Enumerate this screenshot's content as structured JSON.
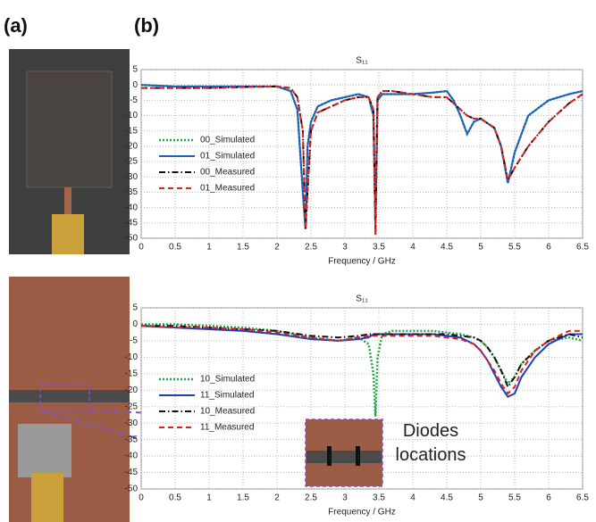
{
  "labels": [
    "(a)",
    "(b)"
  ],
  "annotation": "Diodes locations",
  "chart_data": [
    {
      "type": "line",
      "title": "S₁₁",
      "xlabel": "Frequency / GHz",
      "grid": true,
      "xlim": [
        0,
        6.5
      ],
      "xticks": [
        0,
        0.5,
        1,
        1.5,
        2,
        2.5,
        3,
        3.5,
        4,
        4.5,
        5,
        5.5,
        6,
        6.5
      ],
      "ylim": [
        -50,
        5
      ],
      "yticks": [
        5,
        0,
        -5,
        -10,
        -15,
        -20,
        -25,
        -30,
        -35,
        -40,
        -45,
        -50
      ],
      "x": [
        0,
        0.5,
        1,
        1.5,
        2,
        2.2,
        2.3,
        2.38,
        2.42,
        2.45,
        2.5,
        2.6,
        2.8,
        3.0,
        3.2,
        3.35,
        3.42,
        3.45,
        3.48,
        3.55,
        3.7,
        4.0,
        4.3,
        4.5,
        4.6,
        4.7,
        4.8,
        4.9,
        5.0,
        5.2,
        5.3,
        5.4,
        5.5,
        5.7,
        6.0,
        6.3,
        6.5
      ],
      "series": [
        {
          "name": "00_Simulated",
          "color": "#22a845",
          "linestyle": "dotted",
          "values": [
            0,
            -0.5,
            -0.5,
            -0.5,
            -0.5,
            -2,
            -8,
            -35,
            -47,
            -20,
            -12,
            -7,
            -5,
            -4,
            -3,
            -4,
            -10,
            -45,
            -5,
            -3,
            -3,
            -3,
            -2.5,
            -2,
            -5,
            -10,
            -16,
            -12,
            -11,
            -14,
            -20,
            -32,
            -22,
            -10,
            -5,
            -3,
            -2
          ]
        },
        {
          "name": "01_Simulated",
          "color": "#1f5fbf",
          "linestyle": "solid",
          "values": [
            0,
            -0.5,
            -0.5,
            -0.5,
            -0.5,
            -2,
            -8,
            -35,
            -47,
            -20,
            -12,
            -7,
            -5,
            -4,
            -3,
            -4,
            -10,
            -45,
            -5,
            -3,
            -3,
            -3,
            -2.5,
            -2,
            -5,
            -10,
            -16,
            -12,
            -11,
            -14,
            -20,
            -32,
            -22,
            -10,
            -5,
            -3,
            -2
          ]
        },
        {
          "name": "00_Measured",
          "color": "#111111",
          "linestyle": "dashdot",
          "values": [
            -1,
            -1,
            -1,
            -0.7,
            -0.5,
            -1,
            -4,
            -15,
            -47,
            -35,
            -15,
            -9,
            -7,
            -5,
            -4,
            -4,
            -8,
            -49,
            -4,
            -2,
            -2,
            -3,
            -4,
            -4,
            -6,
            -8,
            -10,
            -11,
            -11,
            -14,
            -20,
            -31,
            -27,
            -20,
            -12,
            -6,
            -3
          ]
        },
        {
          "name": "01_Measured",
          "color": "#e02020",
          "linestyle": "dashed",
          "values": [
            -1,
            -1,
            -1,
            -0.7,
            -0.5,
            -1,
            -4,
            -15,
            -47,
            -35,
            -15,
            -9,
            -7,
            -5,
            -4,
            -4,
            -8,
            -49,
            -4,
            -2,
            -2,
            -3,
            -4,
            -4,
            -6,
            -8,
            -10,
            -11,
            -11,
            -14,
            -20,
            -31,
            -27,
            -20,
            -12,
            -6,
            -3
          ]
        }
      ]
    },
    {
      "type": "line",
      "title": "S₁₁",
      "xlabel": "Frequency / GHz",
      "grid": true,
      "xlim": [
        0,
        6.5
      ],
      "xticks": [
        0,
        0.5,
        1,
        1.5,
        2,
        2.5,
        3,
        3.5,
        4,
        4.5,
        5,
        5.5,
        6,
        6.5
      ],
      "ylim": [
        -50,
        5
      ],
      "yticks": [
        5,
        0,
        -5,
        -10,
        -15,
        -20,
        -25,
        -30,
        -35,
        -40,
        -45,
        -50
      ],
      "x": [
        0,
        0.5,
        1,
        1.5,
        2,
        2.5,
        2.9,
        3.2,
        3.35,
        3.42,
        3.45,
        3.48,
        3.55,
        3.7,
        4.0,
        4.3,
        4.5,
        4.7,
        4.9,
        5.0,
        5.1,
        5.2,
        5.3,
        5.4,
        5.5,
        5.6,
        5.8,
        6.0,
        6.3,
        6.5
      ],
      "series": [
        {
          "name": "10_Simulated",
          "color": "#22a845",
          "linestyle": "dotted",
          "values": [
            0,
            0,
            -0.5,
            -1,
            -2,
            -4,
            -5,
            -4,
            -6,
            -15,
            -28,
            -10,
            -3,
            -2,
            -2,
            -2,
            -2.5,
            -3,
            -4,
            -5,
            -7,
            -10,
            -14,
            -18,
            -16,
            -12,
            -8,
            -5,
            -4,
            -5
          ]
        },
        {
          "name": "11_Simulated",
          "color": "#1f3fbf",
          "linestyle": "solid",
          "values": [
            -0.5,
            -1,
            -1.5,
            -2,
            -3,
            -4.5,
            -5,
            -4.5,
            -4,
            -3,
            -3,
            -3,
            -3,
            -3,
            -3,
            -3,
            -3.5,
            -4,
            -6,
            -8,
            -11,
            -15,
            -19,
            -22,
            -21,
            -16,
            -10,
            -6,
            -3,
            -3
          ]
        },
        {
          "name": "10_Measured",
          "color": "#111111",
          "linestyle": "dashdot",
          "values": [
            -0.5,
            -0.5,
            -1,
            -1.5,
            -2,
            -3.5,
            -4,
            -3.5,
            -3,
            -3,
            -3,
            -3,
            -3,
            -3,
            -3,
            -3,
            -3,
            -3.5,
            -4,
            -5,
            -7,
            -10,
            -14,
            -19,
            -16,
            -12,
            -8,
            -5,
            -3,
            -4
          ]
        },
        {
          "name": "11_Measured",
          "color": "#e02020",
          "linestyle": "dashed",
          "values": [
            -0.5,
            -1,
            -1,
            -1.5,
            -2.5,
            -4,
            -5,
            -4,
            -3.5,
            -3.5,
            -3.5,
            -3.5,
            -3.5,
            -3.5,
            -3.5,
            -3.5,
            -4,
            -4.5,
            -6,
            -8,
            -11,
            -14,
            -18,
            -21,
            -19,
            -14,
            -8,
            -5,
            -2,
            -2
          ]
        }
      ]
    }
  ]
}
